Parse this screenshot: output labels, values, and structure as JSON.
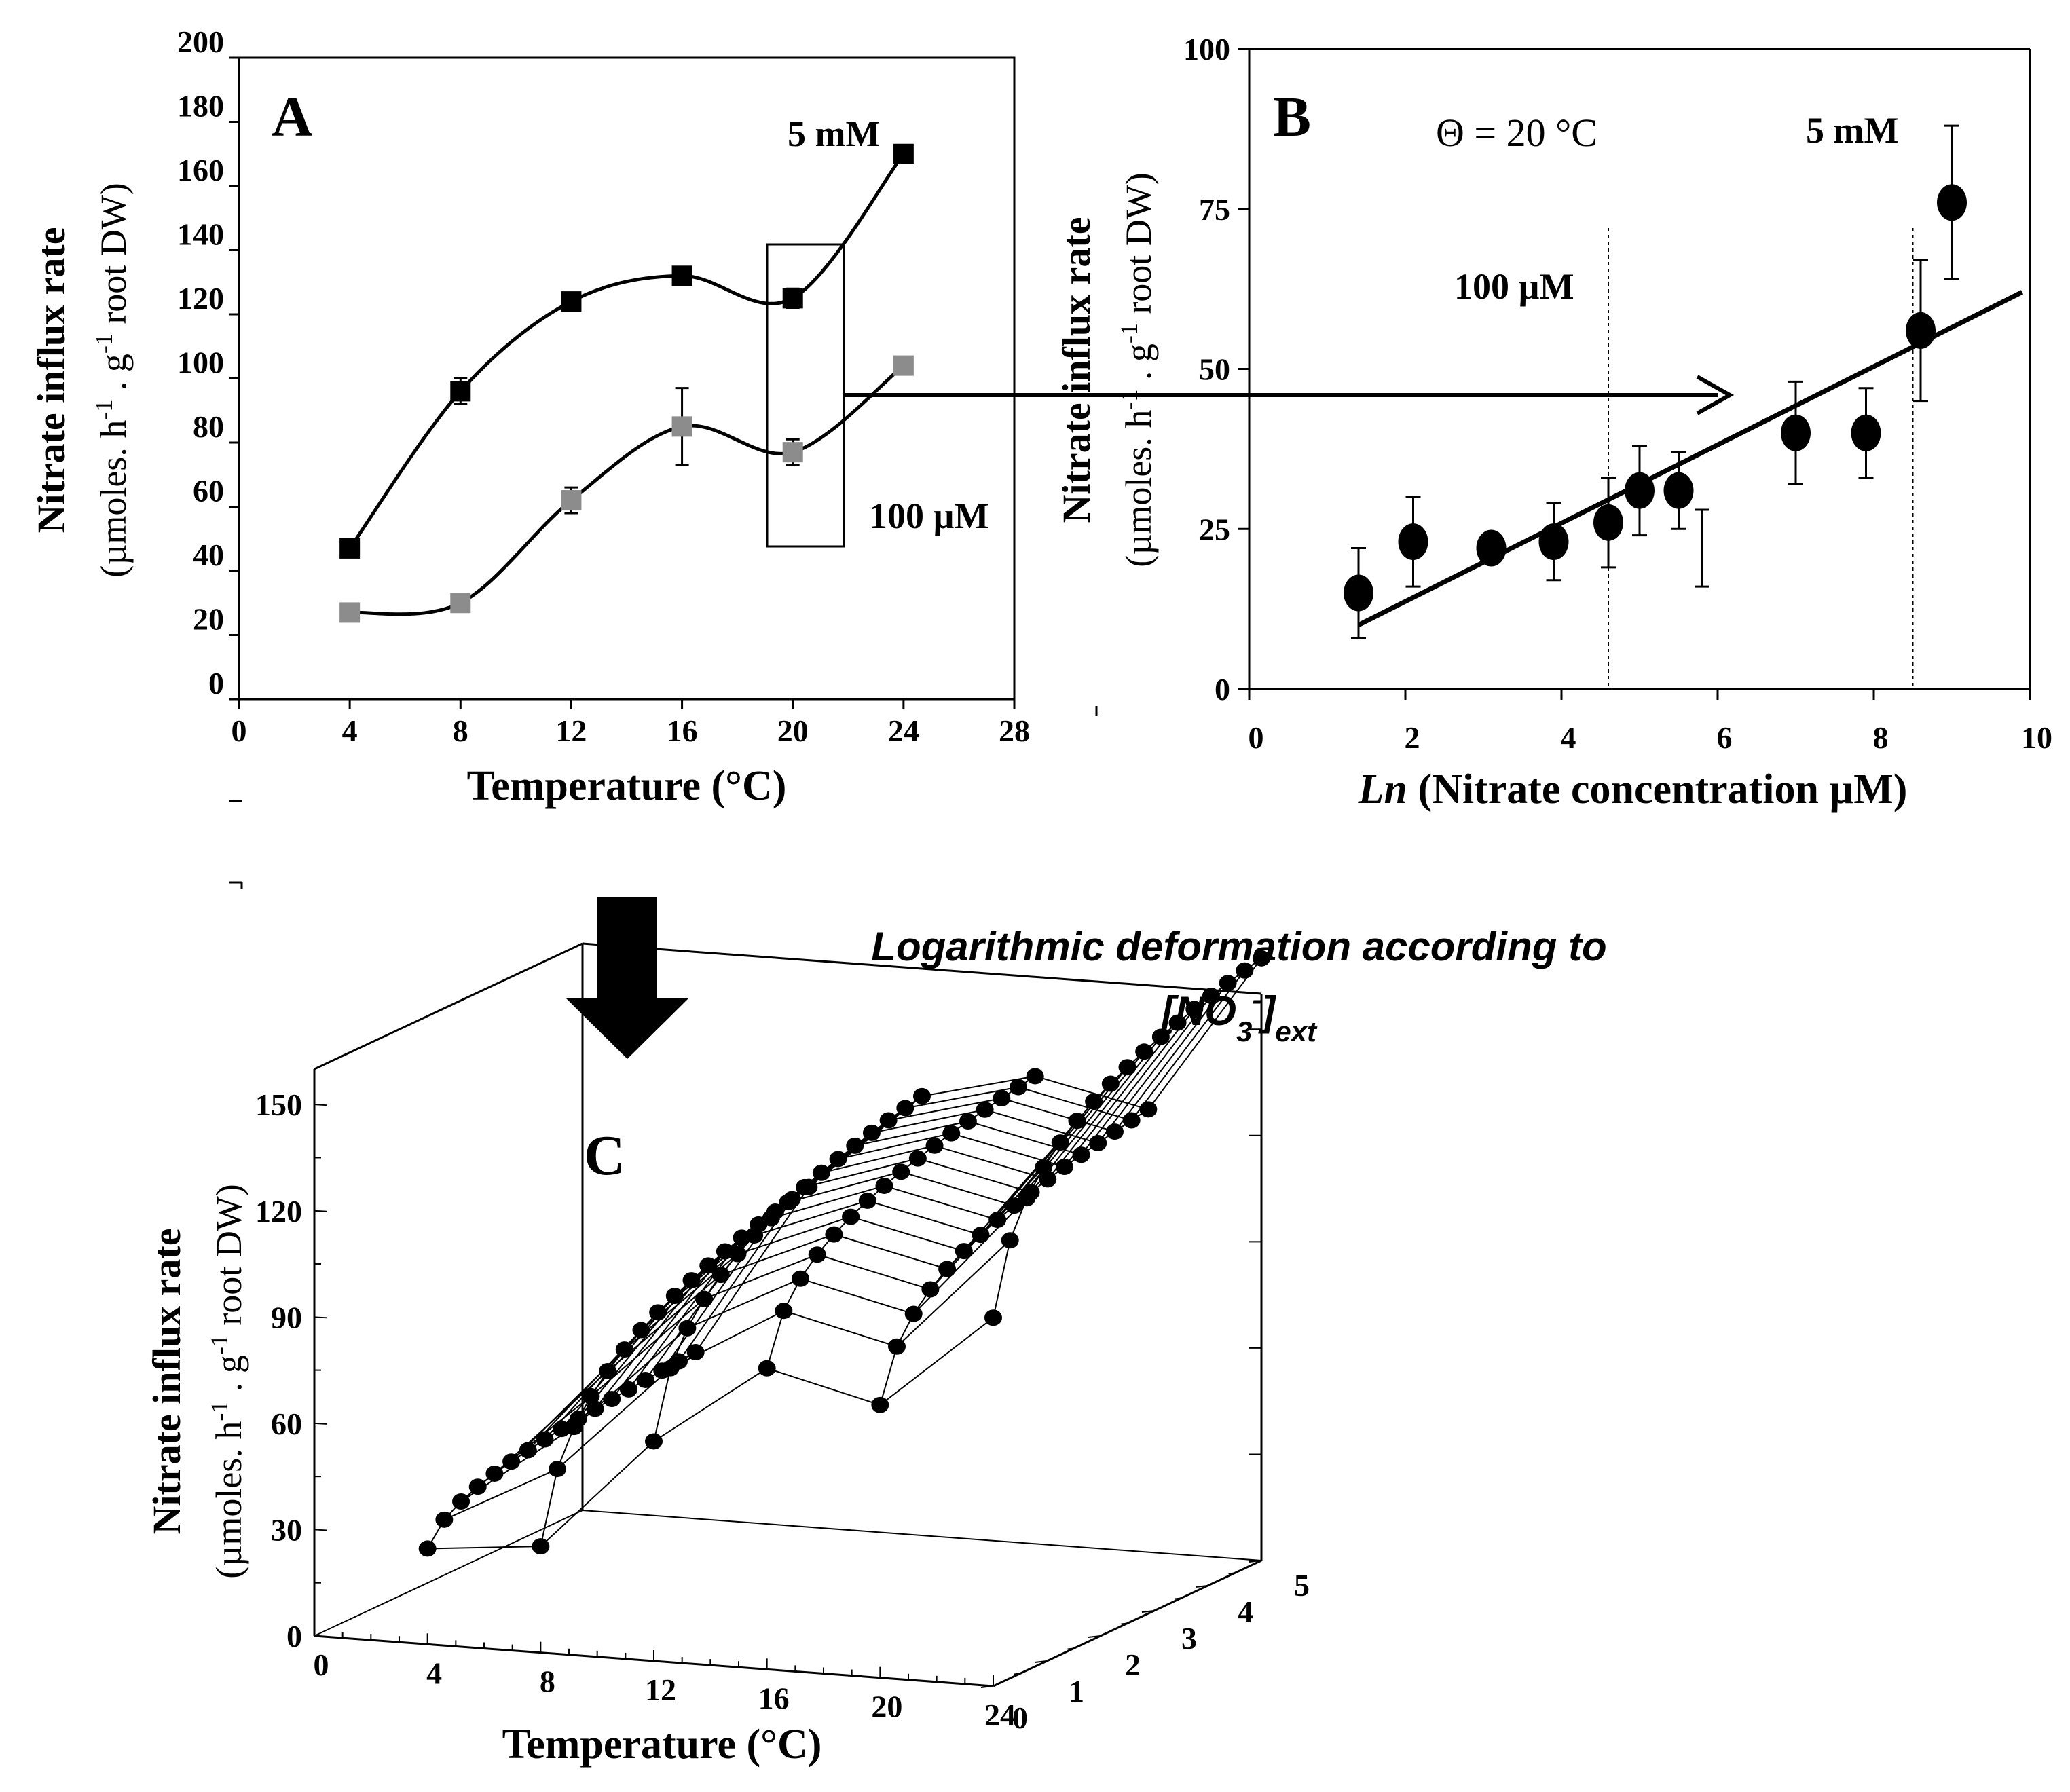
{
  "chart_data": [
    {
      "panel_label": "A",
      "type": "line",
      "xlabel": "Temperature (°C)",
      "ylabel_line1": "Nitrate influx rate",
      "ylabel_line2": "(µmoles. h-1 . g-1 root DW)",
      "xlim": [
        0,
        28
      ],
      "ylim": [
        0,
        200
      ],
      "xticks": [
        "0",
        "4",
        "8",
        "12",
        "16",
        "20",
        "24",
        "28"
      ],
      "yticks": [
        "0",
        "20",
        "40",
        "60",
        "80",
        "100",
        "120",
        "140",
        "160",
        "180",
        "200"
      ],
      "series": [
        {
          "name": "5 mM",
          "color": "#000000",
          "x": [
            4,
            8,
            12,
            16,
            20,
            24
          ],
          "y": [
            47,
            96,
            124,
            132,
            125,
            170
          ],
          "err": [
            2,
            4,
            2,
            2,
            3,
            2
          ]
        },
        {
          "name": "100 µM",
          "color": "#8c8c8c",
          "x": [
            4,
            8,
            12,
            16,
            20,
            24
          ],
          "y": [
            27,
            30,
            62,
            85,
            77,
            104
          ],
          "err": [
            2,
            1,
            4,
            12,
            4,
            1
          ]
        }
      ]
    },
    {
      "panel_label": "B",
      "type": "scatter",
      "xlabel_italic": "Ln",
      "xlabel_rest": " (Nitrate concentration µM)",
      "ylabel_line1": "Nitrate influx rate",
      "ylabel_line2": "(µmoles. h-1 . g-1 root DW)",
      "xlim": [
        0,
        10
      ],
      "ylim": [
        0,
        100
      ],
      "xticks": [
        "0",
        "2",
        "4",
        "6",
        "8",
        "10"
      ],
      "yticks": [
        "0",
        "25",
        "50",
        "75",
        "100"
      ],
      "annotation": "Θ = 20 °C",
      "vlines": [
        {
          "x": 4.6,
          "label": "100 µM"
        },
        {
          "x": 8.5,
          "label": "5 mM"
        }
      ],
      "points": {
        "x": [
          1.4,
          2.1,
          3.1,
          3.9,
          4.6,
          5.0,
          5.5,
          7.0,
          7.9,
          8.6,
          9.0
        ],
        "y": [
          15,
          23,
          22,
          23,
          26,
          31,
          31,
          40,
          40,
          56,
          76
        ],
        "err": [
          7,
          7,
          2,
          6,
          7,
          7,
          6,
          8,
          7,
          11,
          12
        ]
      },
      "extra_errorbar": {
        "x": 5.8,
        "low": 16,
        "high": 28
      },
      "fit_line": {
        "x": [
          1.4,
          9.9
        ],
        "y": [
          10,
          62
        ]
      }
    },
    {
      "panel_label": "C",
      "type": "surface",
      "xlabel": "Temperature (°C)",
      "ylabel_line1": "Nitrate influx rate",
      "ylabel_line2": "(µmoles. h-1 . g-1 root DW)",
      "xlim": [
        0,
        24
      ],
      "ylim": [
        0,
        5
      ],
      "zlim": [
        0,
        160
      ],
      "xticks": [
        "0",
        "4",
        "8",
        "12",
        "16",
        "20",
        "24"
      ],
      "depth_ticks": [
        "0",
        "1",
        "2",
        "3",
        "4",
        "5"
      ],
      "zticks": [
        "0",
        "30",
        "60",
        "90",
        "120",
        "150"
      ],
      "temperatures": [
        4,
        8,
        12,
        16,
        20,
        24
      ],
      "low_rates": [
        27,
        30,
        62,
        85,
        77,
        104
      ],
      "high_rates": [
        47,
        96,
        124,
        132,
        125,
        170
      ]
    }
  ],
  "arrow_caption": {
    "line1": "Logarithmic deformation according to",
    "line2_pre": "[NO",
    "line2_sub": "3",
    "line2_sup": "-",
    "line2_close": "]",
    "line2_sub_ext": "ext"
  }
}
